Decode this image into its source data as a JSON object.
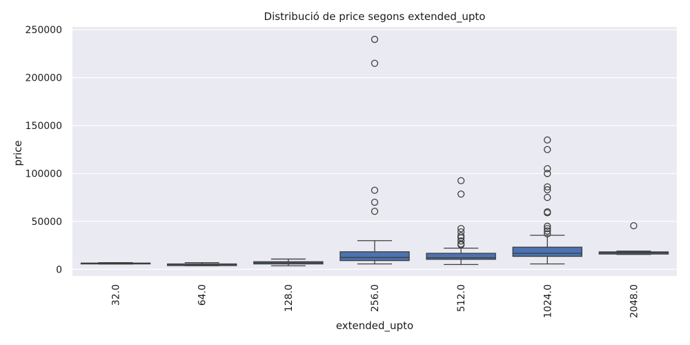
{
  "chart_data": {
    "type": "box",
    "title": "Distribució de price segons extended_upto",
    "xlabel": "extended_upto",
    "ylabel": "price",
    "ylim": [
      -7000,
      253000
    ],
    "y_ticks": [
      0,
      50000,
      100000,
      150000,
      200000,
      250000
    ],
    "y_tick_labels": [
      "0",
      "50000",
      "100000",
      "150000",
      "200000",
      "250000"
    ],
    "categories": [
      "32.0",
      "64.0",
      "128.0",
      "256.0",
      "512.0",
      "1024.0",
      "2048.0"
    ],
    "grid": true,
    "colors": {
      "background": "#eaeaf2",
      "grid": "#ffffff",
      "box": "#4c72b0",
      "line": "#3d3d3d"
    },
    "boxes": [
      {
        "category": "32.0",
        "whisker_low": 5500,
        "q1": 5600,
        "median": 6000,
        "q3": 6500,
        "whisker_high": 6900,
        "outliers": []
      },
      {
        "category": "64.0",
        "whisker_low": 3700,
        "q1": 3900,
        "median": 4400,
        "q3": 5600,
        "whisker_high": 6900,
        "outliers": []
      },
      {
        "category": "128.0",
        "whisker_low": 3700,
        "q1": 5600,
        "median": 6800,
        "q3": 7900,
        "whisker_high": 10700,
        "outliers": []
      },
      {
        "category": "256.0",
        "whisker_low": 5600,
        "q1": 9100,
        "median": 12300,
        "q3": 18300,
        "whisker_high": 29900,
        "outliers": [
          60500,
          70000,
          82500,
          215000,
          240000
        ]
      },
      {
        "category": "512.0",
        "whisker_low": 5000,
        "q1": 10400,
        "median": 12000,
        "q3": 16700,
        "whisker_high": 22100,
        "outliers": [
          25500,
          26500,
          29500,
          33000,
          35000,
          39000,
          42500,
          78500,
          92500
        ]
      },
      {
        "category": "1024.0",
        "whisker_low": 5600,
        "q1": 13500,
        "median": 16700,
        "q3": 23100,
        "whisker_high": 35500,
        "outliers": [
          37000,
          40000,
          42500,
          45000,
          59000,
          60000,
          75000,
          83000,
          86000,
          100000,
          105000,
          125000,
          135000
        ]
      },
      {
        "category": "2048.0",
        "whisker_low": 15500,
        "q1": 15900,
        "median": 17200,
        "q3": 18200,
        "whisker_high": 19000,
        "outliers": [
          45500
        ]
      }
    ]
  }
}
